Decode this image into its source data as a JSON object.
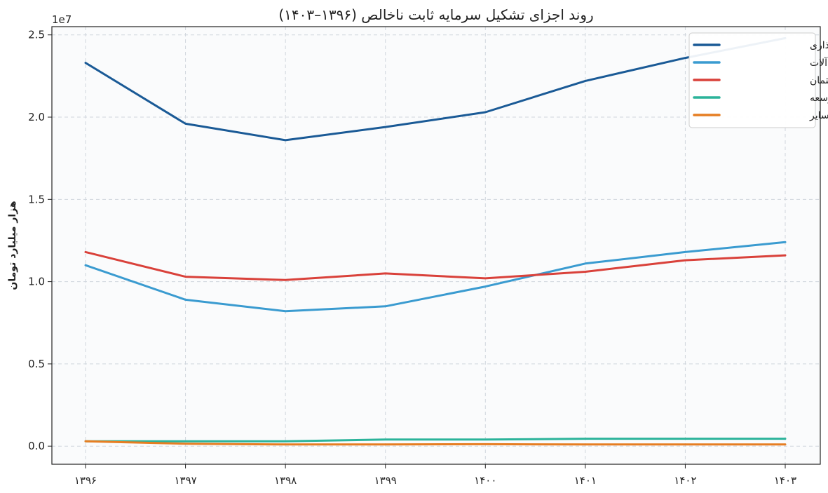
{
  "chart_data": {
    "type": "line",
    "title": "روند اجزای تشکیل سرمایه ثابت ناخالص (۱۳۹۶–۱۴۰۳)",
    "xlabel": "",
    "ylabel": "هزار میلیارد تومان",
    "y_offset_label": "1e7",
    "categories": [
      "۱۳۹۶",
      "۱۳۹۷",
      "۱۳۹۸",
      "۱۳۹۹",
      "۱۴۰۰",
      "۱۴۰۱",
      "۱۴۰۲",
      "۱۴۰۳"
    ],
    "ylim": [
      -0.11,
      2.55
    ],
    "yticks": [
      0.0,
      0.5,
      1.0,
      1.5,
      2.0,
      2.5
    ],
    "ytick_labels": [
      "0.0",
      "0.5",
      "1.0",
      "1.5",
      "2.0",
      "2.5"
    ],
    "grid": true,
    "legend_position": "top-right",
    "series": [
      {
        "name": "کل سرمایه‌گذاری",
        "color": "#1a5a96",
        "values": [
          2.33,
          1.96,
          1.86,
          1.94,
          2.03,
          2.22,
          2.36,
          2.48
        ]
      },
      {
        "name": "ماشین‌آلات",
        "color": "#3a9bd0",
        "values": [
          1.1,
          0.89,
          0.82,
          0.85,
          0.97,
          1.11,
          1.18,
          1.24
        ]
      },
      {
        "name": "ساختمان",
        "color": "#d9413a",
        "values": [
          1.18,
          1.03,
          1.01,
          1.05,
          1.02,
          1.06,
          1.13,
          1.16
        ]
      },
      {
        "name": "تحقیق و توسعه",
        "color": "#2bb39a",
        "values": [
          0.03,
          0.03,
          0.03,
          0.04,
          0.04,
          0.045,
          0.045,
          0.045
        ]
      },
      {
        "name": "سایر",
        "color": "#e67e22",
        "values": [
          0.03,
          0.015,
          0.01,
          0.01,
          0.012,
          0.01,
          0.01,
          0.01
        ]
      }
    ]
  }
}
